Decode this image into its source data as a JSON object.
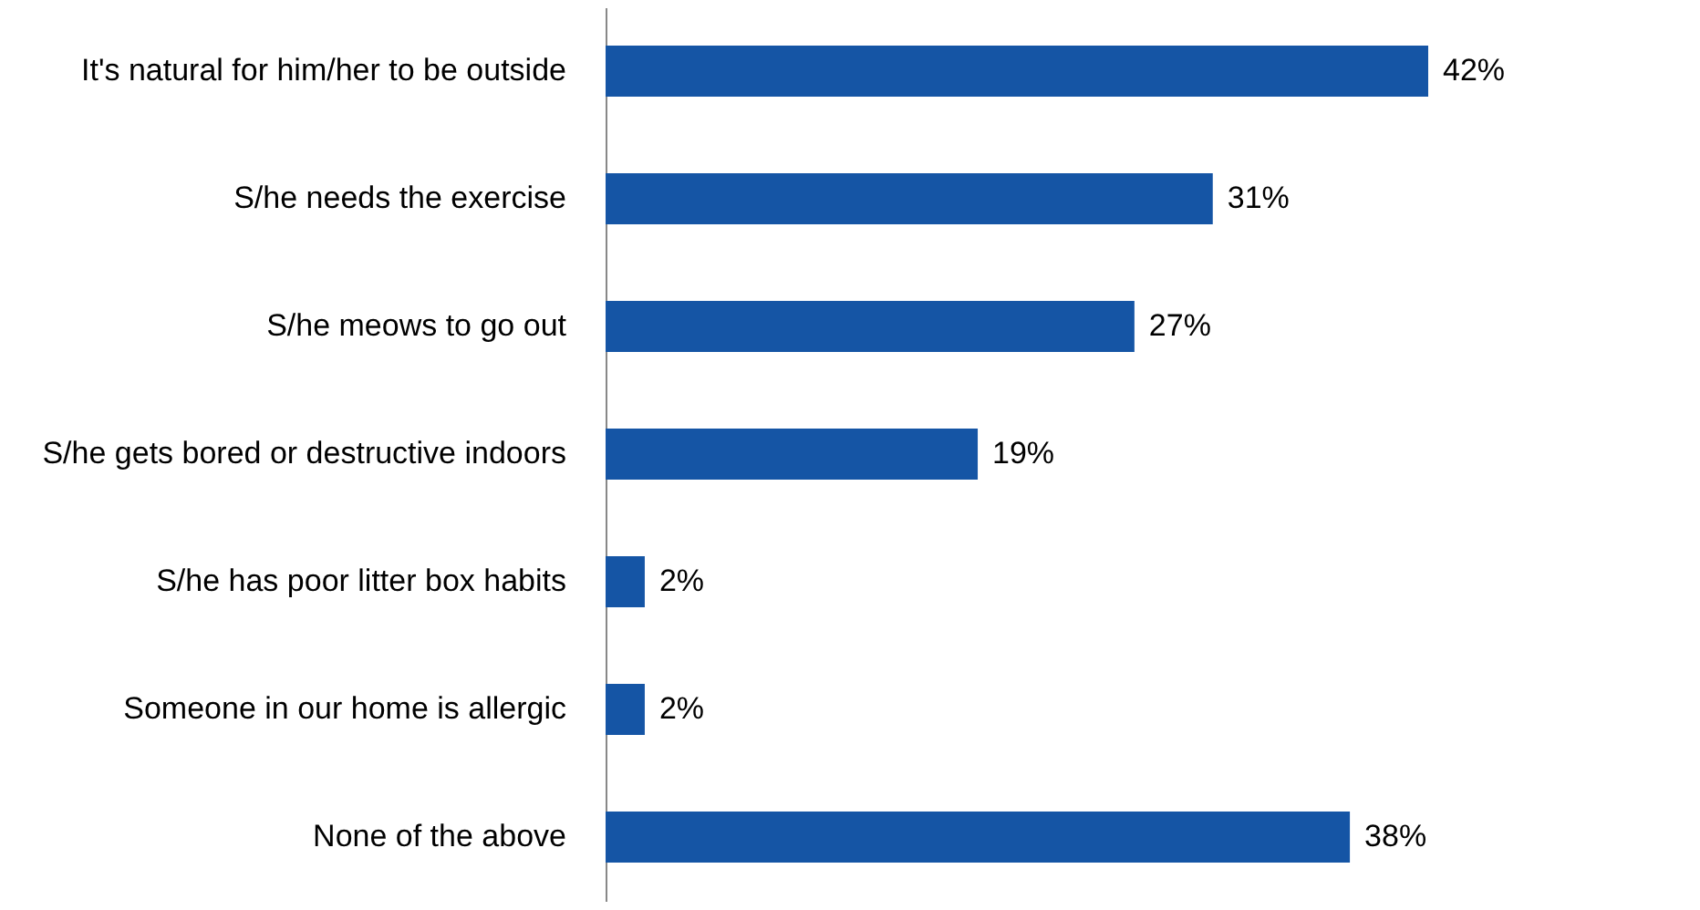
{
  "chart_data": {
    "type": "bar",
    "orientation": "horizontal",
    "categories": [
      "It's natural for him/her to be outside",
      "S/he needs the exercise",
      "S/he meows to go out",
      "S/he gets bored or destructive indoors",
      "S/he has poor litter box habits",
      "Someone in our home is allergic",
      "None of the above"
    ],
    "values": [
      42,
      31,
      27,
      19,
      2,
      2,
      38
    ],
    "value_labels": [
      "42%",
      "31%",
      "27%",
      "19%",
      "2%",
      "2%",
      "38%"
    ],
    "color": "#1555a5",
    "tick_labels": "y"
  }
}
